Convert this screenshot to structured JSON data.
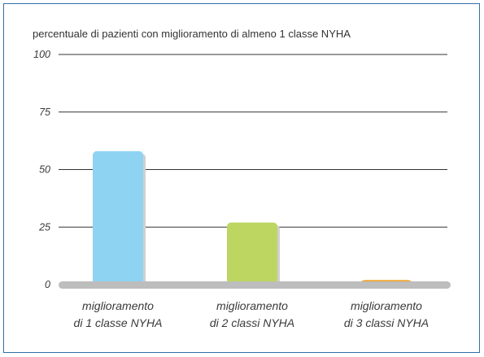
{
  "chart_data": {
    "type": "bar",
    "title": "percentuale di pazienti con miglioramento di almeno 1 classe NYHA",
    "ylim": [
      0,
      100
    ],
    "yticks": [
      "100",
      "75",
      "50",
      "25",
      "0"
    ],
    "grid": true,
    "categories": [
      [
        "miglioramento",
        "di 1 classe NYHA"
      ],
      [
        "miglioramento",
        "di 2 classi NYHA"
      ],
      [
        "miglioramento",
        "di 3 classi NYHA"
      ]
    ],
    "values": [
      58,
      27,
      2
    ],
    "colors": [
      "#8fd3f2",
      "#bdd662",
      "#f0a020"
    ],
    "axis_color": "#bdbdbd"
  }
}
